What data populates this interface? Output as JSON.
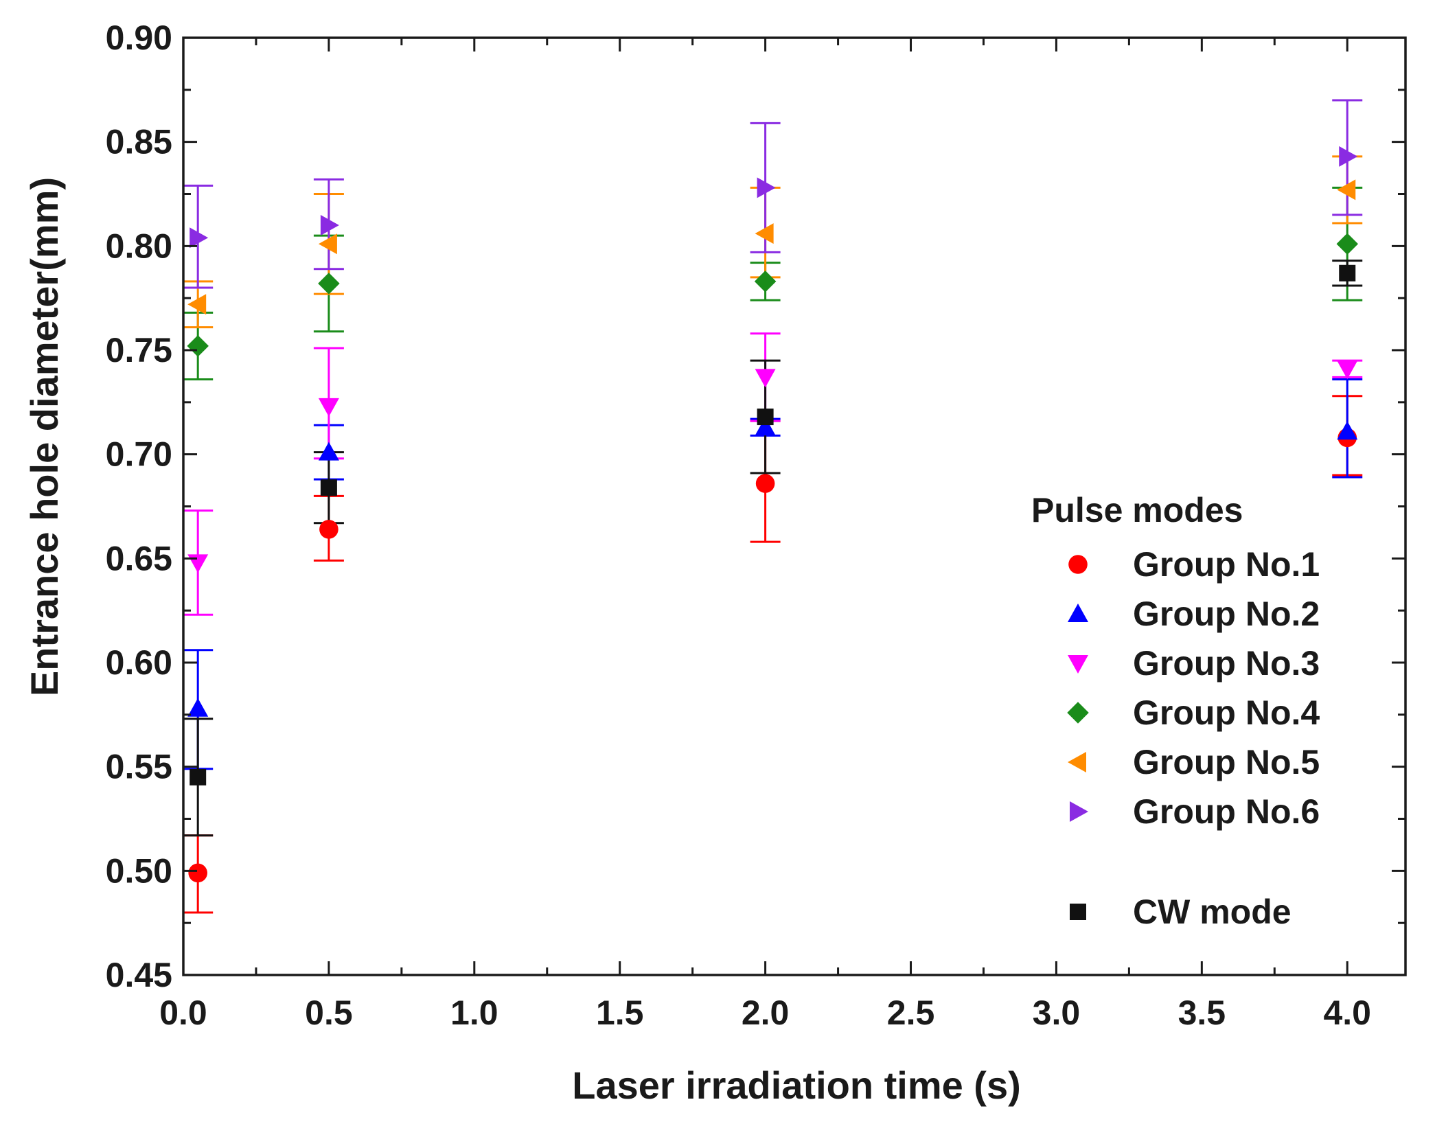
{
  "chart_data": {
    "type": "scatter",
    "title": "",
    "xlabel": "Laser irradiation time (s)",
    "ylabel": "Entrance hole diameter(mm)",
    "xlim": [
      0.0,
      4.2
    ],
    "ylim": [
      0.45,
      0.9
    ],
    "x_ticks": [
      "0.0",
      "0.5",
      "1.0",
      "1.5",
      "2.0",
      "2.5",
      "3.0",
      "3.5",
      "4.0"
    ],
    "y_ticks": [
      "0.45",
      "0.50",
      "0.55",
      "0.60",
      "0.65",
      "0.70",
      "0.75",
      "0.80",
      "0.85",
      "0.90"
    ],
    "grid": false,
    "legend": {
      "title": "Pulse modes",
      "placement": "right"
    },
    "series": [
      {
        "name": "Group No.1",
        "marker": "circle",
        "color": "#ff0000",
        "points": [
          {
            "x": 0.05,
            "y": 0.499,
            "err_low": 0.48,
            "err_high": 0.517
          },
          {
            "x": 0.5,
            "y": 0.664,
            "err_low": 0.649,
            "err_high": 0.68
          },
          {
            "x": 2.0,
            "y": 0.686,
            "err_low": 0.658,
            "err_high": 0.716
          },
          {
            "x": 4.0,
            "y": 0.708,
            "err_low": 0.69,
            "err_high": 0.728
          }
        ]
      },
      {
        "name": "Group No.2",
        "marker": "triangle-up",
        "color": "#0000ff",
        "points": [
          {
            "x": 0.05,
            "y": 0.578,
            "err_low": 0.549,
            "err_high": 0.606
          },
          {
            "x": 0.5,
            "y": 0.701,
            "err_low": 0.688,
            "err_high": 0.714
          },
          {
            "x": 2.0,
            "y": 0.713,
            "err_low": 0.709,
            "err_high": 0.717
          },
          {
            "x": 4.0,
            "y": 0.711,
            "err_low": 0.689,
            "err_high": 0.736
          }
        ]
      },
      {
        "name": "Group No.3",
        "marker": "triangle-down",
        "color": "#ff00ff",
        "points": [
          {
            "x": 0.05,
            "y": 0.648,
            "err_low": 0.623,
            "err_high": 0.673
          },
          {
            "x": 0.5,
            "y": 0.723,
            "err_low": 0.698,
            "err_high": 0.751
          },
          {
            "x": 2.0,
            "y": 0.737,
            "err_low": 0.716,
            "err_high": 0.758
          },
          {
            "x": 4.0,
            "y": 0.741,
            "err_low": 0.737,
            "err_high": 0.745
          }
        ]
      },
      {
        "name": "Group No.4",
        "marker": "diamond",
        "color": "#1a8c1a",
        "points": [
          {
            "x": 0.05,
            "y": 0.752,
            "err_low": 0.736,
            "err_high": 0.768
          },
          {
            "x": 0.5,
            "y": 0.782,
            "err_low": 0.759,
            "err_high": 0.805
          },
          {
            "x": 2.0,
            "y": 0.783,
            "err_low": 0.774,
            "err_high": 0.792
          },
          {
            "x": 4.0,
            "y": 0.801,
            "err_low": 0.774,
            "err_high": 0.828
          }
        ]
      },
      {
        "name": "Group No.5",
        "marker": "triangle-left",
        "color": "#ff8c00",
        "points": [
          {
            "x": 0.05,
            "y": 0.772,
            "err_low": 0.761,
            "err_high": 0.783
          },
          {
            "x": 0.5,
            "y": 0.801,
            "err_low": 0.777,
            "err_high": 0.825
          },
          {
            "x": 2.0,
            "y": 0.806,
            "err_low": 0.785,
            "err_high": 0.828
          },
          {
            "x": 4.0,
            "y": 0.827,
            "err_low": 0.811,
            "err_high": 0.843
          }
        ]
      },
      {
        "name": "Group No.6",
        "marker": "triangle-right",
        "color": "#8a2be2",
        "points": [
          {
            "x": 0.05,
            "y": 0.804,
            "err_low": 0.78,
            "err_high": 0.829
          },
          {
            "x": 0.5,
            "y": 0.81,
            "err_low": 0.789,
            "err_high": 0.832
          },
          {
            "x": 2.0,
            "y": 0.828,
            "err_low": 0.797,
            "err_high": 0.859
          },
          {
            "x": 4.0,
            "y": 0.843,
            "err_low": 0.815,
            "err_high": 0.87
          }
        ]
      },
      {
        "name": "CW mode",
        "marker": "square",
        "color": "#111111",
        "points": [
          {
            "x": 0.05,
            "y": 0.545,
            "err_low": 0.517,
            "err_high": 0.573
          },
          {
            "x": 0.5,
            "y": 0.684,
            "err_low": 0.667,
            "err_high": 0.701
          },
          {
            "x": 2.0,
            "y": 0.718,
            "err_low": 0.691,
            "err_high": 0.745
          },
          {
            "x": 4.0,
            "y": 0.787,
            "err_low": 0.781,
            "err_high": 0.793
          }
        ]
      }
    ]
  }
}
